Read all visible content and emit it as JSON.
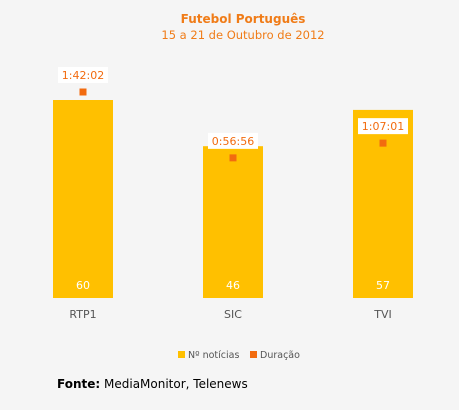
{
  "colors": {
    "background": "#f5f5f5",
    "bar": "#ffc000",
    "marker": "#f26b0f",
    "title": "#f07c18",
    "axis_text": "#555555",
    "value_box_text": "#f26b0f"
  },
  "source": {
    "label": "Fonte:",
    "text": "MediaMonitor, Telenews"
  },
  "chart_data": {
    "type": "bar",
    "title": "Futebol Português",
    "subtitle": "15 a 21 de Outubro de 2012",
    "categories": [
      "RTP1",
      "SIC",
      "TVI"
    ],
    "series": [
      {
        "name": "Nº notícias",
        "type": "bar",
        "values": [
          60,
          46,
          57
        ],
        "color": "#ffc000"
      },
      {
        "name": "Duração",
        "type": "scatter",
        "values": [
          "1:42:02",
          "0:56:56",
          "1:07:01"
        ],
        "color": "#f26b0f"
      }
    ],
    "legend": {
      "position": "bottom-center"
    },
    "grid": false
  }
}
